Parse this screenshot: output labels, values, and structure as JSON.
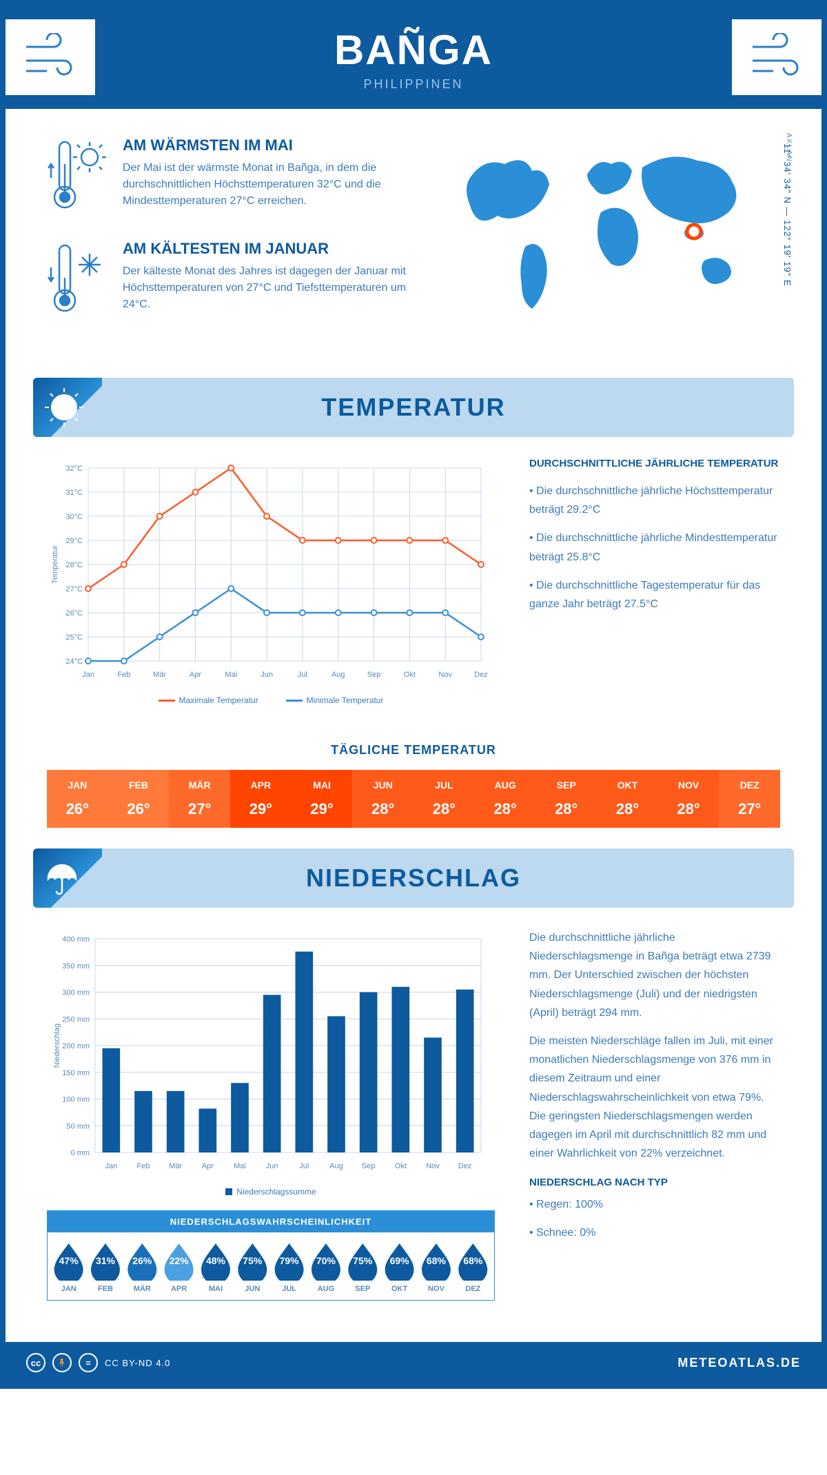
{
  "header": {
    "city": "BAÑGA",
    "country": "PHILIPPINEN"
  },
  "intro": {
    "warm": {
      "title": "AM WÄRMSTEN IM MAI",
      "text": "Der Mai ist der wärmste Monat in Bañga, in dem die durchschnittlichen Höchsttemperaturen 32°C und die Mindesttemperaturen 27°C erreichen."
    },
    "cold": {
      "title": "AM KÄLTESTEN IM JANUAR",
      "text": "Der kälteste Monat des Jahres ist dagegen der Januar mit Höchsttemperaturen von 27°C und Tiefsttemperaturen um 24°C."
    },
    "coords": "11° 34' 34\" N — 122° 19' 19\" E",
    "region": "AKLAN"
  },
  "months": [
    "Jan",
    "Feb",
    "Mär",
    "Apr",
    "Mai",
    "Jun",
    "Jul",
    "Aug",
    "Sep",
    "Okt",
    "Nov",
    "Dez"
  ],
  "months_upper": [
    "JAN",
    "FEB",
    "MÄR",
    "APR",
    "MAI",
    "JUN",
    "JUL",
    "AUG",
    "SEP",
    "OKT",
    "NOV",
    "DEZ"
  ],
  "temp_section": {
    "title": "TEMPERATUR",
    "chart": {
      "type": "line",
      "ylim": [
        24,
        32
      ],
      "yticks": [
        "24°C",
        "25°C",
        "26°C",
        "27°C",
        "28°C",
        "29°C",
        "30°C",
        "31°C",
        "32°C"
      ],
      "ylabel": "Temperatur",
      "max_series": [
        27,
        28,
        30,
        31,
        32,
        30,
        29,
        29,
        29,
        29,
        29,
        28
      ],
      "min_series": [
        24,
        24,
        25,
        26,
        27,
        26,
        26,
        26,
        26,
        26,
        26,
        25
      ],
      "max_color": "#ff5a2a",
      "min_color": "#3b8fd6",
      "grid_color": "#c8d8e8",
      "legend_max": "Maximale Temperatur",
      "legend_min": "Minimale Temperatur"
    },
    "info": {
      "title": "DURCHSCHNITTLICHE JÄHRLICHE TEMPERATUR",
      "b1": "• Die durchschnittliche jährliche Höchsttemperatur beträgt 29.2°C",
      "b2": "• Die durchschnittliche jährliche Mindesttemperatur beträgt 25.8°C",
      "b3": "• Die durchschnittliche Tagestemperatur für das ganze Jahr beträgt 27.5°C"
    },
    "daily": {
      "title": "TÄGLICHE TEMPERATUR",
      "values": [
        "26°",
        "26°",
        "27°",
        "29°",
        "29°",
        "28°",
        "28°",
        "28°",
        "28°",
        "28°",
        "28°",
        "27°"
      ],
      "colors": [
        "#ff7a3a",
        "#ff7a3a",
        "#ff6a2a",
        "#ff4500",
        "#ff4500",
        "#ff5a1a",
        "#ff5a1a",
        "#ff5a1a",
        "#ff5a1a",
        "#ff5a1a",
        "#ff5a1a",
        "#ff6a2a"
      ]
    }
  },
  "precip_section": {
    "title": "NIEDERSCHLAG",
    "chart": {
      "type": "bar",
      "ylim": [
        0,
        400
      ],
      "ytick_step": 50,
      "yticks": [
        "0 mm",
        "50 mm",
        "100 mm",
        "150 mm",
        "200 mm",
        "250 mm",
        "300 mm",
        "350 mm",
        "400 mm"
      ],
      "ylabel": "Niederschlag",
      "values": [
        195,
        115,
        115,
        82,
        130,
        295,
        376,
        255,
        300,
        310,
        215,
        305
      ],
      "bar_color": "#0d5a9e",
      "grid_color": "#c8d8e8",
      "bar_width": 0.55,
      "legend": "Niederschlagssumme"
    },
    "text1": "Die durchschnittliche jährliche Niederschlagsmenge in Bañga beträgt etwa 2739 mm. Der Unterschied zwischen der höchsten Niederschlagsmenge (Juli) und der niedrigsten (April) beträgt 294 mm.",
    "text2": "Die meisten Niederschläge fallen im Juli, mit einer monatlichen Niederschlagsmenge von 376 mm in diesem Zeitraum und einer Niederschlagswahrscheinlichkeit von etwa 79%. Die geringsten Niederschlagsmengen werden dagegen im April mit durchschnittlich 82 mm und einer Wahrlichkeit von 22% verzeichnet.",
    "prob": {
      "title": "NIEDERSCHLAGSWAHRSCHEINLICHKEIT",
      "values": [
        "47%",
        "31%",
        "26%",
        "22%",
        "48%",
        "75%",
        "79%",
        "70%",
        "75%",
        "69%",
        "68%",
        "68%"
      ],
      "colors": [
        "#0d5a9e",
        "#0d5a9e",
        "#1a6fb8",
        "#4aa0e0",
        "#0d5a9e",
        "#0d5a9e",
        "#0d5a9e",
        "#0d5a9e",
        "#0d5a9e",
        "#0d5a9e",
        "#0d5a9e",
        "#0d5a9e"
      ]
    },
    "type": {
      "title": "NIEDERSCHLAG NACH TYP",
      "b1": "• Regen: 100%",
      "b2": "• Schnee: 0%"
    }
  },
  "footer": {
    "license": "CC BY-ND 4.0",
    "site": "METEOATLAS.DE"
  }
}
